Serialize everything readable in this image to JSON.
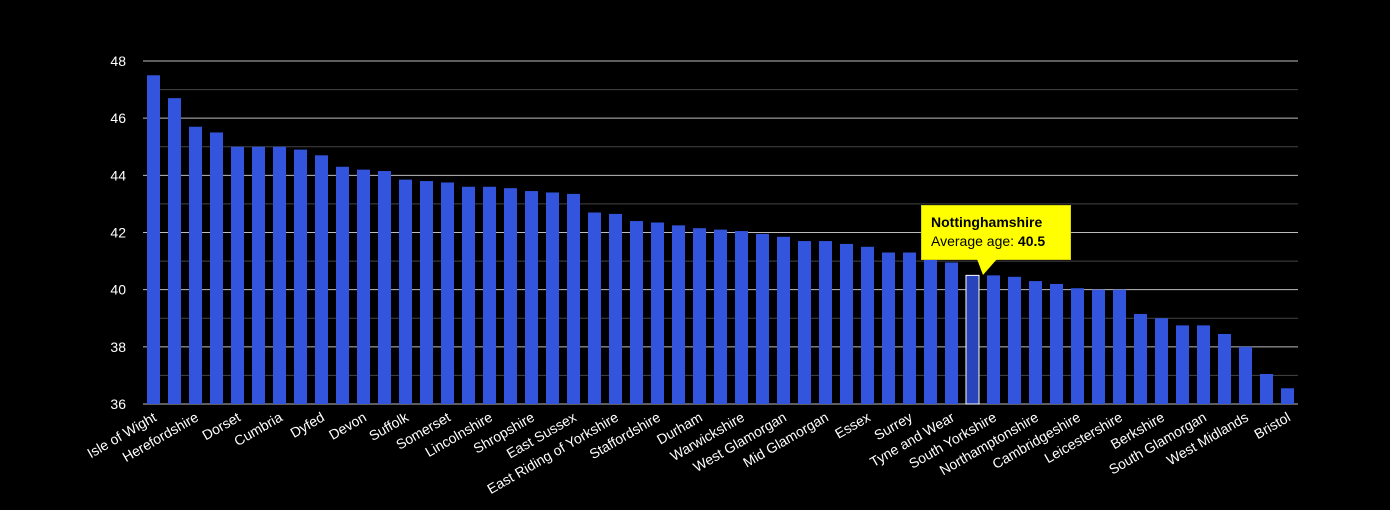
{
  "chart_data": {
    "type": "bar",
    "ylim": [
      36,
      48
    ],
    "yticks": [
      36,
      38,
      40,
      42,
      44,
      46,
      48
    ],
    "grid": true,
    "bar_color": "#3355dd",
    "highlight_color": "#2a44bb",
    "categories": [
      "Isle of Wight",
      "",
      "Herefordshire",
      "",
      "Dorset",
      "",
      "Cumbria",
      "",
      "Dyfed",
      "",
      "Devon",
      "",
      "Suffolk",
      "",
      "Somerset",
      "",
      "Lincolnshire",
      "",
      "Shropshire",
      "",
      "East Sussex",
      "",
      "East Riding of Yorkshire",
      "",
      "Staffordshire",
      "",
      "Durham",
      "",
      "Warwickshire",
      "",
      "West Glamorgan",
      "",
      "Mid Glamorgan",
      "",
      "Essex",
      "",
      "Surrey",
      "",
      "Tyne and Wear",
      "",
      "South Yorkshire",
      "",
      "Northamptonshire",
      "",
      "Cambridgeshire",
      "",
      "Leicestershire",
      "",
      "Berkshire",
      "",
      "South Glamorgan",
      "",
      "West Midlands",
      "",
      "Bristol"
    ],
    "values": [
      47.5,
      46.7,
      45.7,
      45.5,
      45.0,
      45.0,
      45.0,
      44.9,
      44.7,
      44.3,
      44.2,
      44.15,
      43.85,
      43.8,
      43.75,
      43.6,
      43.6,
      43.55,
      43.45,
      43.4,
      43.35,
      42.7,
      42.65,
      42.4,
      42.35,
      42.25,
      42.15,
      42.1,
      42.05,
      41.95,
      41.85,
      41.7,
      41.7,
      41.6,
      41.5,
      41.3,
      41.3,
      41.1,
      40.95,
      40.5,
      40.5,
      40.45,
      40.3,
      40.2,
      40.05,
      40.0,
      40.0,
      39.15,
      39.0,
      38.75,
      38.75,
      38.45,
      38.0,
      37.05,
      36.55
    ],
    "highlight_index": 39,
    "tooltip": {
      "title": "Nottinghamshire",
      "label": "Average age: ",
      "value": "40.5"
    }
  }
}
